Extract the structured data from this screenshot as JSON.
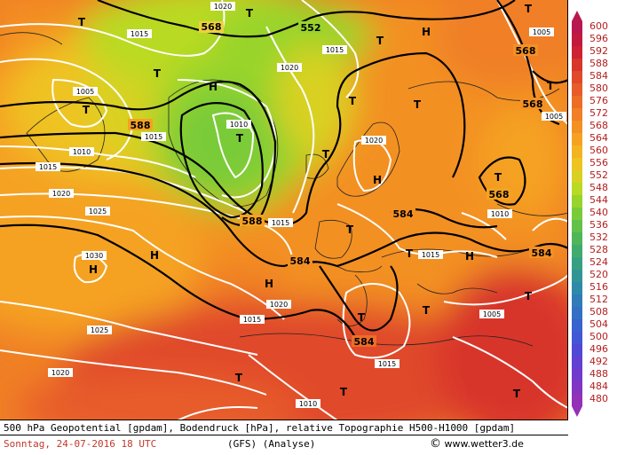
{
  "title": "500 hPa Geopotential [gpdam], Bodendruck [hPa], relative Topographie H500-H1000 [gpdam]",
  "datetime": "Sonntag, 24-07-2016  18 UTC",
  "model": "(GFS)  (Analyse)",
  "copyright_symbol": "©",
  "source": "www.wetter3.de",
  "legend": {
    "values": [
      "600",
      "596",
      "592",
      "588",
      "584",
      "580",
      "576",
      "572",
      "568",
      "564",
      "560",
      "556",
      "552",
      "548",
      "544",
      "540",
      "536",
      "532",
      "528",
      "524",
      "520",
      "516",
      "512",
      "508",
      "504",
      "500",
      "496",
      "492",
      "488",
      "484",
      "480"
    ],
    "colors": [
      "#b8174f",
      "#c21a3c",
      "#cc2233",
      "#d8352b",
      "#e0492a",
      "#e75c2a",
      "#ec6d28",
      "#f07f25",
      "#f39024",
      "#f5a223",
      "#f4b422",
      "#efc321",
      "#d9d121",
      "#b9da22",
      "#98d42c",
      "#7acb38",
      "#62c148",
      "#4fb65a",
      "#41ab6e",
      "#37a082",
      "#319596",
      "#2f89a8",
      "#2f7cb8",
      "#3270c5",
      "#3863cf",
      "#4257d5",
      "#5049d6",
      "#6140d2",
      "#723acb",
      "#8234c2",
      "#9530b8"
    ]
  },
  "labels": {
    "high": "H",
    "low": "T",
    "geopotential": [
      "568",
      "552",
      "568",
      "568",
      "588",
      "588",
      "584",
      "584",
      "584",
      "584",
      "568",
      "588"
    ],
    "pressure": [
      "1020",
      "1015",
      "1010",
      "1005",
      "1010",
      "1015",
      "1020",
      "1025",
      "1030",
      "1025",
      "1020",
      "1015",
      "1015",
      "1010",
      "1005",
      "1020",
      "1015",
      "1010",
      "1015",
      "1020",
      "1015",
      "1005",
      "1015",
      "1005",
      "1010"
    ]
  }
}
